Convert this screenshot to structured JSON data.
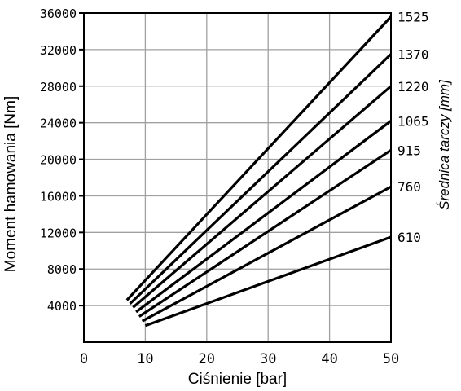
{
  "chart_data": {
    "type": "line",
    "title": "",
    "xlabel": "Ciśnienie [bar]",
    "ylabel": "Moment hamowania [Nm]",
    "right_axis_label": "Średnica tarczy [mm]",
    "xlim": [
      0,
      50
    ],
    "ylim": [
      0,
      36000
    ],
    "x_ticks": [
      "0",
      "10",
      "20",
      "30",
      "40",
      "50"
    ],
    "y_ticks": [
      "36000",
      "32000",
      "28000",
      "24000",
      "20000",
      "16000",
      "12000",
      "8000",
      "4000"
    ],
    "grid": true,
    "series": [
      {
        "name": "1525",
        "x": [
          7,
          50
        ],
        "y": [
          4600,
          35600
        ]
      },
      {
        "name": "1370",
        "x": [
          7.5,
          50
        ],
        "y": [
          4200,
          31500
        ]
      },
      {
        "name": "1220",
        "x": [
          8,
          50
        ],
        "y": [
          3800,
          28000
        ]
      },
      {
        "name": "1065",
        "x": [
          8.5,
          50
        ],
        "y": [
          3300,
          24200
        ]
      },
      {
        "name": "915",
        "x": [
          9,
          50
        ],
        "y": [
          2800,
          21000
        ]
      },
      {
        "name": "760",
        "x": [
          9.5,
          50
        ],
        "y": [
          2300,
          17000
        ]
      },
      {
        "name": "610",
        "x": [
          10,
          50
        ],
        "y": [
          1800,
          11500
        ]
      }
    ]
  }
}
